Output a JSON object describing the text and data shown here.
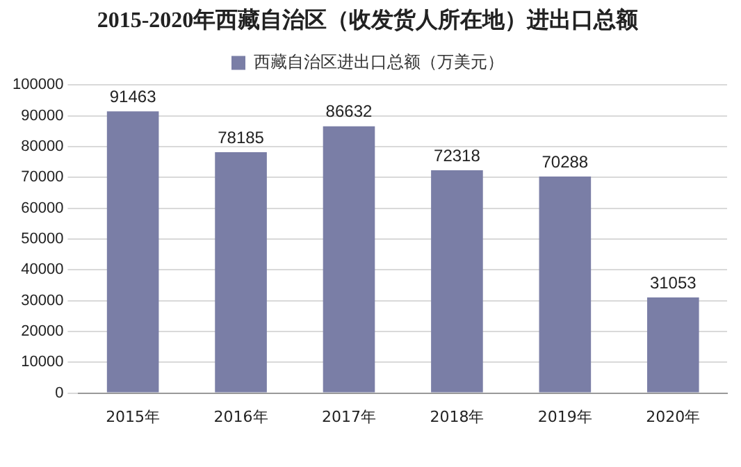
{
  "chart_data": {
    "type": "bar",
    "title": "2015-2020年西藏自治区（收发货人所在地）进出口总额",
    "categories": [
      "2015年",
      "2016年",
      "2017年",
      "2018年",
      "2019年",
      "2020年"
    ],
    "series": [
      {
        "name": "西藏自治区进出口总额（万美元）",
        "color": "#7a7ea6",
        "values": [
          91463,
          78185,
          86632,
          72318,
          70288,
          31053
        ]
      }
    ],
    "ylim": [
      0,
      100000
    ],
    "yticks": [
      0,
      10000,
      20000,
      30000,
      40000,
      50000,
      60000,
      70000,
      80000,
      90000,
      100000
    ],
    "grid": "y",
    "legend": "top",
    "data_labels": true
  }
}
